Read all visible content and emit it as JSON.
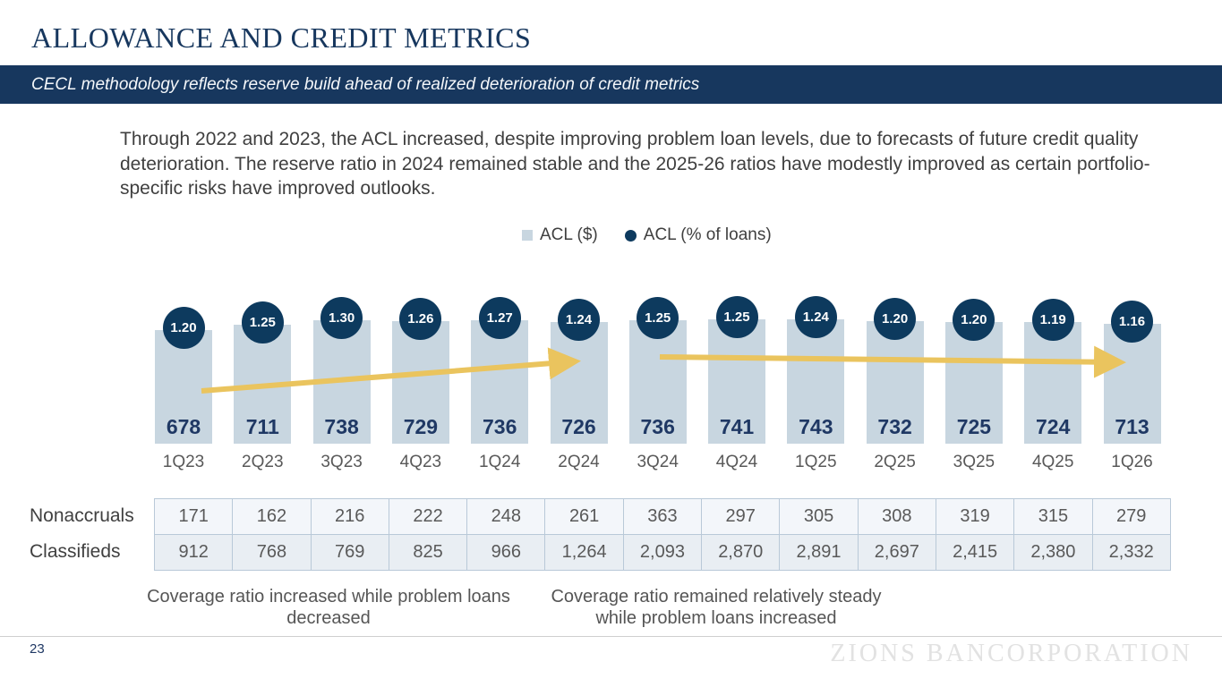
{
  "slide": {
    "title": "ALLOWANCE AND CREDIT METRICS",
    "subtitle": "CECL methodology reflects reserve build ahead of realized deterioration of credit metrics",
    "body_text": "Through 2022 and 2023, the ACL increased, despite improving problem loan levels, due to forecasts of future credit quality deterioration. The reserve ratio in 2024 remained stable and the 2025-26 ratios have modestly improved as certain portfolio-specific risks have improved outlooks.",
    "page_number": "23",
    "watermark": "ZIONS BANCORPORATION"
  },
  "chart_data": {
    "type": "bar",
    "title": "",
    "categories": [
      "1Q23",
      "2Q23",
      "3Q23",
      "4Q23",
      "1Q24",
      "2Q24",
      "3Q24",
      "4Q24",
      "1Q25",
      "2Q25",
      "3Q25",
      "4Q25",
      "1Q26"
    ],
    "series": [
      {
        "name": "ACL ($)",
        "type": "bar",
        "values": [
          678,
          711,
          738,
          729,
          736,
          726,
          736,
          741,
          743,
          732,
          725,
          724,
          713
        ]
      },
      {
        "name": "ACL (% of loans)",
        "type": "point",
        "values": [
          1.2,
          1.25,
          1.3,
          1.26,
          1.27,
          1.24,
          1.25,
          1.25,
          1.24,
          1.2,
          1.2,
          1.19,
          1.16
        ],
        "labels": [
          "1.20",
          "1.25",
          "1.30",
          "1.26",
          "1.27",
          "1.24",
          "1.25",
          "1.25",
          "1.24",
          "1.20",
          "1.20",
          "1.19",
          "1.16"
        ]
      }
    ],
    "legend": [
      {
        "label": "ACL ($)",
        "marker": "square",
        "color": "#C8D6E0"
      },
      {
        "label": "ACL (% of loans)",
        "marker": "circle",
        "color": "#0D3A5E"
      }
    ],
    "legend_position": "top-center",
    "grid": false,
    "ylim": [
      0,
      790
    ],
    "annotations": [
      {
        "type": "trend-arrow",
        "direction": "up",
        "color": "#EAC45E",
        "from_category": "1Q23",
        "to_category": "2Q24"
      },
      {
        "type": "trend-arrow",
        "direction": "flat",
        "color": "#EAC45E",
        "from_category": "3Q24",
        "to_category": "1Q26"
      }
    ]
  },
  "table": {
    "rows": [
      {
        "label": "Nonaccruals",
        "values": [
          "171",
          "162",
          "216",
          "222",
          "248",
          "261",
          "363",
          "297",
          "305",
          "308",
          "319",
          "315",
          "279"
        ]
      },
      {
        "label": "Classifieds",
        "values": [
          "912",
          "768",
          "769",
          "825",
          "966",
          "1,264",
          "2,093",
          "2,870",
          "2,891",
          "2,697",
          "2,415",
          "2,380",
          "2,332"
        ]
      }
    ]
  },
  "callouts": [
    {
      "text": "Coverage ratio increased while problem loans decreased"
    },
    {
      "text": "Coverage ratio remained relatively steady while problem loans increased"
    }
  ],
  "colors": {
    "navy": "#17375E",
    "circle_navy": "#0D3A5E",
    "bar_fill": "#C8D6E0",
    "value_text": "#1F3864",
    "arrow_gold": "#EAC45E",
    "axis_gray": "#595959",
    "table_border": "#B9C9D8"
  }
}
